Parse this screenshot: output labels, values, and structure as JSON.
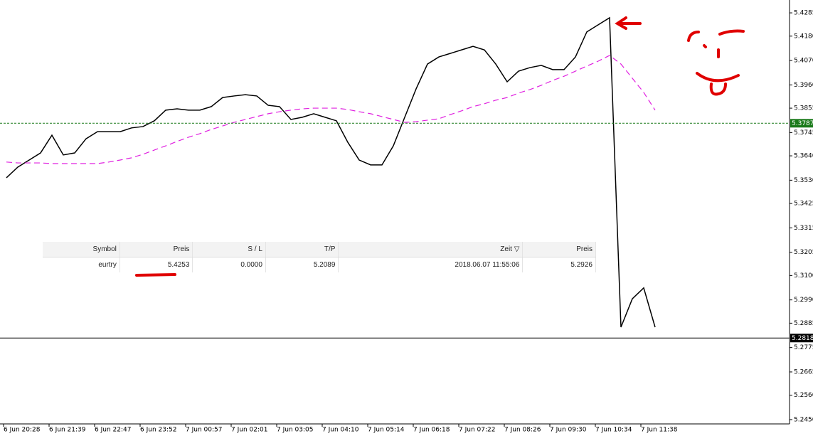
{
  "chart_data": {
    "type": "line",
    "categories": [
      null,
      "6 Jun 20:28",
      null,
      null,
      null,
      "6 Jun 21:39",
      null,
      null,
      null,
      "6 Jun 22:47",
      null,
      null,
      null,
      "6 Jun 23:52",
      null,
      null,
      null,
      "7 Jun 00:57",
      null,
      null,
      null,
      "7 Jun 02:01",
      null,
      null,
      null,
      "7 Jun 03:05",
      null,
      null,
      null,
      "7 Jun 04:10",
      null,
      null,
      null,
      "7 Jun 05:14",
      null,
      null,
      null,
      "7 Jun 06:18",
      null,
      null,
      null,
      "7 Jun 07:22",
      null,
      null,
      null,
      "7 Jun 08:26",
      null,
      null,
      null,
      "7 Jun 09:30",
      null,
      null,
      null,
      "7 Jun 10:34",
      null,
      null,
      null,
      "7 Jun 11:38"
    ],
    "series": [
      {
        "color": "#000000",
        "values": [
          5.3541,
          5.3589,
          5.3621,
          5.3653,
          5.3733,
          5.3644,
          5.3653,
          5.3717,
          5.3749,
          5.3749,
          5.3749,
          5.3766,
          5.3772,
          5.3798,
          5.3846,
          5.3852,
          5.3846,
          5.3846,
          5.3862,
          5.3903,
          5.391,
          5.3916,
          5.391,
          5.3868,
          5.3862,
          5.3804,
          5.3814,
          5.383,
          5.3814,
          5.3798,
          5.3701,
          5.3621,
          5.3599,
          5.3599,
          5.3685,
          5.3814,
          5.3942,
          5.4054,
          5.4086,
          5.4102,
          5.4118,
          5.4134,
          5.4118,
          5.4054,
          5.3974,
          5.4022,
          5.4038,
          5.4048,
          5.4029,
          5.4029,
          5.4086,
          5.4199,
          5.4231,
          5.4263,
          5.2867,
          5.2995,
          5.3044,
          5.2867
        ]
      },
      {
        "color": "#e020e0",
        "dashed": true,
        "values": [
          5.3612,
          5.3608,
          5.3608,
          5.3608,
          5.3605,
          5.3605,
          5.3605,
          5.3605,
          5.3605,
          5.3612,
          5.3621,
          5.3631,
          5.3647,
          5.3666,
          5.3685,
          5.3705,
          5.3724,
          5.374,
          5.3759,
          5.3775,
          5.3791,
          5.3804,
          5.3817,
          5.383,
          5.3839,
          5.3846,
          5.3852,
          5.3855,
          5.3855,
          5.3855,
          5.3849,
          5.3839,
          5.383,
          5.3817,
          5.3804,
          5.3791,
          5.3794,
          5.3801,
          5.3807,
          5.3826,
          5.3843,
          5.3862,
          5.3875,
          5.3891,
          5.3903,
          5.3923,
          5.3939,
          5.3958,
          5.398,
          5.3999,
          5.4022,
          5.4045,
          5.4067,
          5.4093,
          5.4054,
          5.399,
          5.3926,
          5.3846
        ]
      }
    ],
    "ylim": [
      5.2376,
      5.4343
    ],
    "yticks": [
      5.4285,
      {
        "value": 5.418,
        "label": "5.4180"
      },
      {
        "value": 5.407,
        "label": "5.4070"
      },
      {
        "value": 5.396,
        "label": "5.3960"
      },
      5.3855,
      5.3745,
      {
        "value": 5.364,
        "label": "5.3640"
      },
      {
        "value": 5.353,
        "label": "5.3530"
      },
      5.3425,
      5.3315,
      5.3205,
      {
        "value": 5.31,
        "label": "5.3100"
      },
      {
        "value": 5.299,
        "label": "5.2990"
      },
      5.2885,
      5.2775,
      5.2665,
      {
        "value": 5.256,
        "label": "5.2560"
      },
      {
        "value": 5.245,
        "label": "5.2450"
      }
    ],
    "levels": [
      {
        "value": 5.3787,
        "color": "#1a7a1a"
      },
      {
        "value": 5.2818,
        "color": "#000000"
      }
    ]
  },
  "table": {
    "header": [
      "Symbol",
      "Preis",
      "S / L",
      "T/P",
      "Zeit ▽",
      "Preis"
    ],
    "rows": [
      [
        "eurtry",
        "5.4253",
        "0.0000",
        "5.2089",
        "2018.06.07 11:55:06",
        "5.2926"
      ]
    ]
  }
}
